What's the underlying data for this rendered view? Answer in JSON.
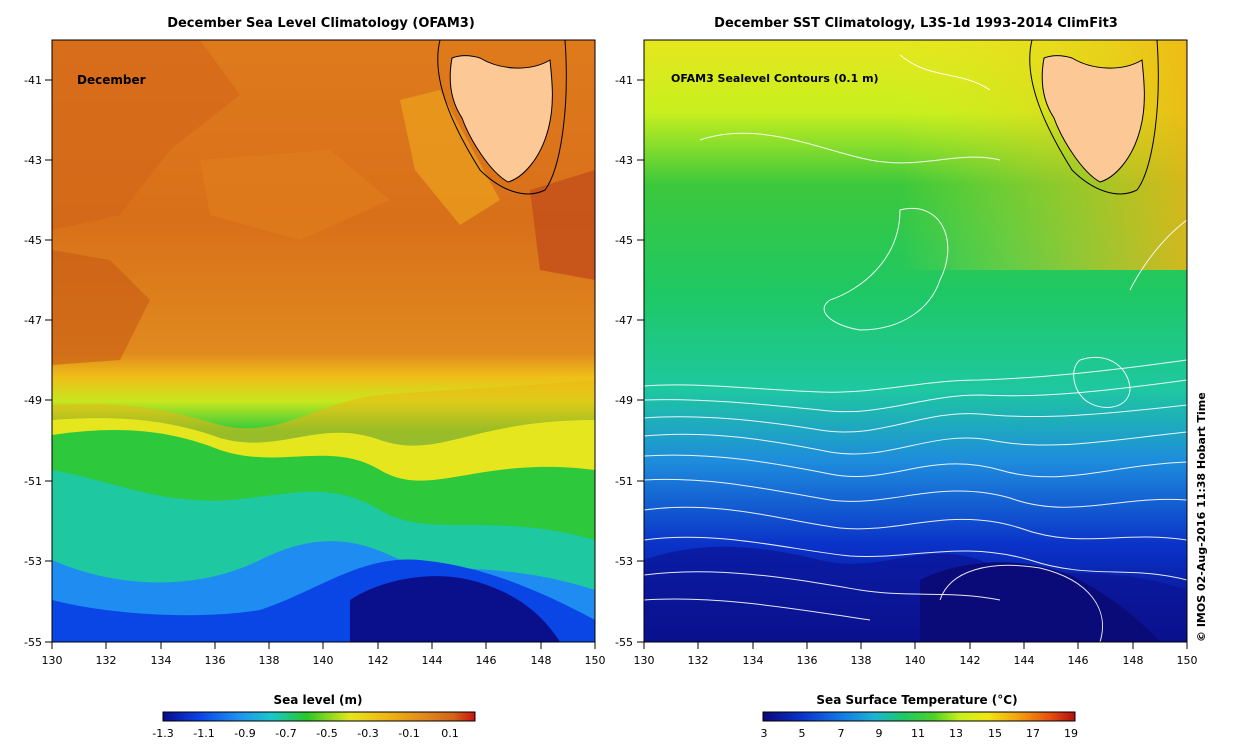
{
  "left_panel": {
    "title": "December Sea Level Climatology (OFAM3)",
    "month_label": "December",
    "y_ticks": [
      "-41",
      "-43",
      "-45",
      "-47",
      "-49",
      "-51",
      "-53",
      "-55"
    ],
    "x_ticks": [
      "130",
      "132",
      "134",
      "136",
      "138",
      "140",
      "142",
      "144",
      "146",
      "148",
      "150"
    ],
    "colorbar": {
      "title": "Sea level (m)",
      "ticks": [
        "-1.3",
        "-1.1",
        "-0.9",
        "-0.7",
        "-0.5",
        "-0.3",
        "-0.1",
        "0.1"
      ]
    }
  },
  "right_panel": {
    "title": "December SST Climatology, L3S-1d 1993-2014 ClimFit3",
    "overlay_label": "OFAM3 Sealevel Contours (0.1 m)",
    "y_ticks": [
      "-41",
      "-43",
      "-45",
      "-47",
      "-49",
      "-51",
      "-53",
      "-55"
    ],
    "x_ticks": [
      "130",
      "132",
      "134",
      "136",
      "138",
      "140",
      "142",
      "144",
      "146",
      "148",
      "150"
    ],
    "colorbar": {
      "title": "Sea Surface Temperature (°C)",
      "ticks": [
        "3",
        "5",
        "7",
        "9",
        "11",
        "13",
        "15",
        "17",
        "19"
      ]
    }
  },
  "credit": "© IMOS 02-Aug-2016 11:38 Hobart Time",
  "colors": {
    "land": "#fcc896",
    "sea_level_scale": [
      "#0a0a8c",
      "#0a46e6",
      "#1e96f0",
      "#19c8c8",
      "#2ec87a",
      "#28c828",
      "#e6e61e",
      "#f0b414",
      "#e1881e",
      "#d2641a",
      "#c83c14"
    ],
    "sst_scale": [
      "#0a0a78",
      "#0a32c8",
      "#1478e6",
      "#1eb4d2",
      "#1ec8a0",
      "#1ec864",
      "#50d228",
      "#c8f01e",
      "#f0e614",
      "#f5a00f",
      "#e6500f",
      "#b40f0f"
    ]
  }
}
